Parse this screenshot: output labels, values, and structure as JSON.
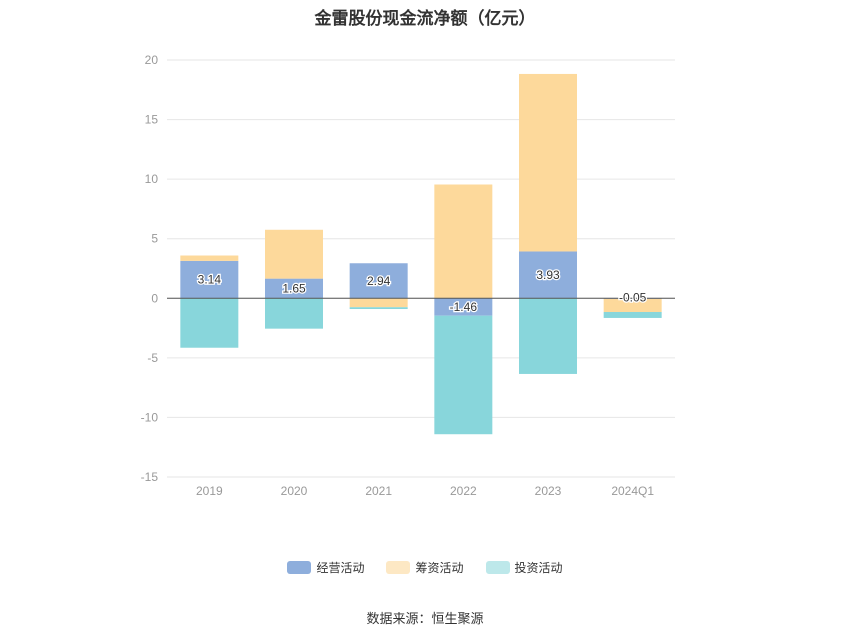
{
  "chart_data": {
    "type": "bar",
    "stacked": true,
    "title": "金雷股份现金流净额（亿元）",
    "categories": [
      "2019",
      "2020",
      "2021",
      "2022",
      "2023",
      "2024Q1"
    ],
    "series": [
      {
        "name": "经营活动",
        "color": "#8eaedc",
        "values": [
          3.14,
          1.65,
          2.94,
          -1.46,
          3.93,
          -0.05
        ],
        "labels": [
          "3.14",
          "1.65",
          "2.94",
          "-1.46",
          "3.93",
          "-0.05"
        ]
      },
      {
        "name": "筹资活动",
        "color": "#fdd99b",
        "values": [
          0.45,
          4.1,
          -0.75,
          9.55,
          14.9,
          -1.1
        ]
      },
      {
        "name": "投资活动",
        "color": "#88d6db",
        "values": [
          -4.15,
          -2.55,
          -0.15,
          -9.95,
          -6.35,
          -0.5
        ]
      }
    ],
    "ylim": [
      -15,
      20
    ],
    "yticks": [
      "20",
      "15",
      "10",
      "5",
      "0",
      "-5",
      "-10",
      "-15"
    ],
    "ytick_values": [
      20,
      15,
      10,
      5,
      0,
      -5,
      -10,
      -15
    ],
    "grid": true,
    "legend_position": "bottom"
  },
  "source_text": "数据来源：恒生聚源"
}
